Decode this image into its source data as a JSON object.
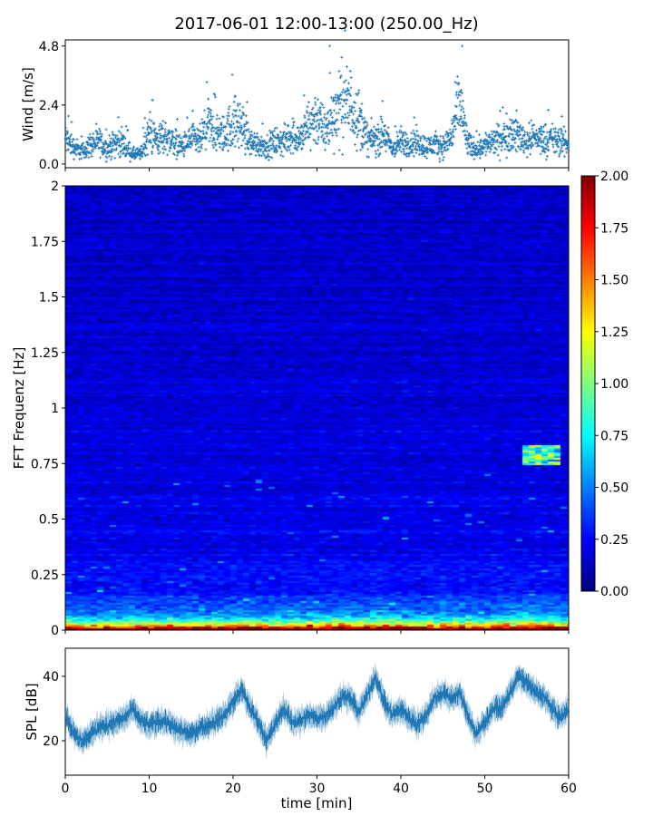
{
  "chart_data": [
    {
      "type": "scatter",
      "title": "2017-06-01 12:00-13:00 (250.00_Hz)",
      "ylabel": "Wind [m/s]",
      "ylim": [
        -0.15,
        5.05
      ],
      "xlim": [
        0,
        60
      ],
      "yticks": [
        "0.0",
        "2.4",
        "4.8"
      ],
      "ytick_values": [
        0,
        2.4,
        4.8
      ],
      "color": "#1f77b4",
      "marker": "+",
      "minute_median_wind": [
        1.0,
        0.7,
        0.5,
        0.8,
        0.9,
        0.6,
        0.9,
        0.8,
        0.4,
        0.4,
        1.3,
        1.0,
        1.1,
        0.9,
        0.7,
        1.0,
        0.9,
        1.6,
        1.2,
        1.2,
        1.7,
        1.6,
        0.9,
        0.8,
        0.7,
        0.9,
        0.9,
        1.2,
        1.0,
        1.6,
        1.9,
        1.3,
        2.0,
        2.5,
        2.4,
        1.9,
        1.0,
        1.0,
        1.2,
        0.6,
        0.9,
        0.8,
        0.9,
        0.7,
        0.8,
        0.7,
        1.1,
        2.5,
        0.8,
        0.6,
        0.8,
        0.9,
        1.0,
        1.3,
        1.2,
        0.9,
        1.1,
        1.0,
        1.0,
        0.9,
        0.8
      ],
      "peak_wind": 4.8
    },
    {
      "type": "heatmap",
      "ylabel": "FFT Frequenz [Hz]",
      "ylim": [
        0,
        2
      ],
      "xlim": [
        0,
        60
      ],
      "yticks": [
        "0",
        "0.25",
        "0.5",
        "0.75",
        "1",
        "1.25",
        "1.5",
        "1.75",
        "2"
      ],
      "ytick_values": [
        0,
        0.25,
        0.5,
        0.75,
        1,
        1.25,
        1.5,
        1.75,
        2
      ],
      "colormap": "jet",
      "clim": [
        0,
        2
      ],
      "colorbar_ticks": [
        "0.00",
        "0.25",
        "0.50",
        "0.75",
        "1.00",
        "1.25",
        "1.50",
        "1.75",
        "2.00"
      ],
      "colorbar_values": [
        0,
        0.25,
        0.5,
        0.75,
        1,
        1.25,
        1.5,
        1.75,
        2
      ],
      "features": {
        "background_level": 0.2,
        "low_freq_peak_level": 2.0,
        "low_freq_band_hz": [
          0,
          0.05
        ],
        "tonal_band": {
          "time_min": [
            54,
            58.5
          ],
          "freq_hz": [
            0.74,
            0.83
          ],
          "level": 1.2
        }
      }
    },
    {
      "type": "line",
      "ylabel": "SPL [dB]",
      "xlabel": "time [min]",
      "xlim": [
        0,
        60
      ],
      "ylim": [
        9.3,
        48.7
      ],
      "xticks": [
        "0",
        "10",
        "20",
        "30",
        "40",
        "50",
        "60"
      ],
      "xtick_values": [
        0,
        10,
        20,
        30,
        40,
        50,
        60
      ],
      "yticks": [
        "20",
        "40"
      ],
      "ytick_values": [
        20,
        40
      ],
      "color": "#1f77b4",
      "minute_median_spl": [
        28,
        22,
        20,
        22,
        24,
        25,
        26,
        27,
        30,
        26,
        25,
        26,
        26,
        24,
        23,
        22,
        24,
        25,
        26,
        28,
        32,
        36,
        30,
        26,
        20,
        25,
        30,
        26,
        26,
        28,
        27,
        28,
        30,
        34,
        33,
        29,
        34,
        40,
        32,
        28,
        30,
        27,
        25,
        28,
        33,
        35,
        33,
        35,
        28,
        22,
        26,
        30,
        30,
        35,
        40,
        38,
        35,
        34,
        30,
        27,
        30
      ]
    }
  ]
}
